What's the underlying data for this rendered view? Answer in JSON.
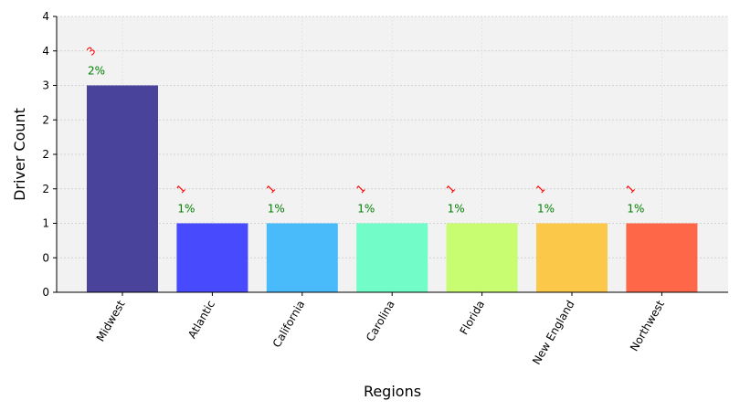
{
  "chart_data": {
    "type": "bar",
    "xlabel": "Regions",
    "ylabel": "Driver Count",
    "categories": [
      "Midwest",
      "Atlantic",
      "California",
      "Carolina",
      "Florida",
      "New England",
      "Northwest"
    ],
    "values": [
      3,
      1,
      1,
      1,
      1,
      1,
      1
    ],
    "percent_labels": [
      "2%",
      "1%",
      "1%",
      "1%",
      "1%",
      "1%",
      "1%"
    ],
    "count_labels": [
      "3",
      "1",
      "1",
      "1",
      "1",
      "1",
      "1"
    ],
    "colors": [
      "#3b3495",
      "#3a3cff",
      "#3bb5fb",
      "#66fdc4",
      "#c4fd66",
      "#fdc43b",
      "#ff5c3a"
    ],
    "ylim": [
      0,
      4
    ],
    "y_ticks": [
      0,
      0.5,
      1,
      1.5,
      2,
      2.5,
      3,
      3.5,
      4
    ],
    "y_tick_labels": [
      "0",
      "0",
      "1",
      "2",
      "2",
      "2",
      "3",
      "4",
      "4"
    ],
    "grid": true,
    "label_colors": {
      "percent": "#008000",
      "count": "#ff0000"
    },
    "background": "#f2f2f2"
  }
}
